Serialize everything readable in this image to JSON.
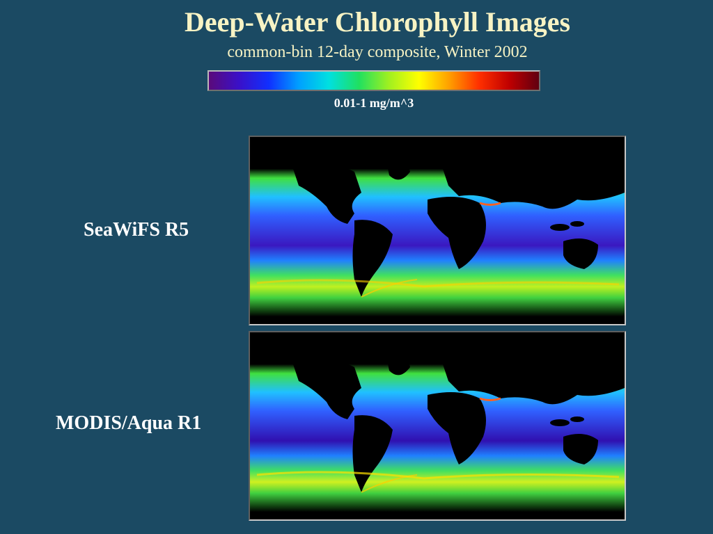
{
  "slide": {
    "title": "Deep-Water Chlorophyll Images",
    "subtitle": "common-bin 12-day composite, Winter 2002"
  },
  "colorbar": {
    "range_label": "0.01-1 mg/m^3",
    "stops": [
      "#5a0a7a",
      "#3a10c8",
      "#1030ff",
      "#00a0ff",
      "#00e0e0",
      "#20e060",
      "#a0f020",
      "#ffff00",
      "#ffa000",
      "#ff3000",
      "#c00000",
      "#600010"
    ]
  },
  "panels": [
    {
      "label": "SeaWiFS R5",
      "sensor_icon": "chlorophyll-map-seawifs"
    },
    {
      "label": "MODIS/Aqua R1",
      "sensor_icon": "chlorophyll-map-modis"
    }
  ],
  "colors": {
    "background": "#1b4a63",
    "title": "#f7f3c4",
    "land": "#000000"
  }
}
